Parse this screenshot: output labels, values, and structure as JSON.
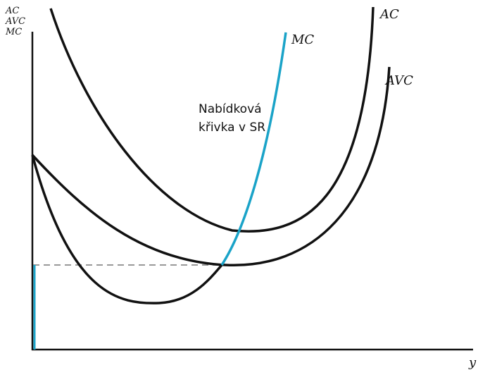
{
  "y_axis_labels": [
    "AC",
    "AVC",
    "MC"
  ],
  "x_axis_label": "y",
  "curves": {
    "ac": "AC",
    "avc": "AVC",
    "mc": "MC"
  },
  "annotation": {
    "line1": "Nabídková",
    "line2": "křivka v SR"
  },
  "colors": {
    "curve": "#111111",
    "supply": "#1aa3c8",
    "dashed": "#777777"
  }
}
